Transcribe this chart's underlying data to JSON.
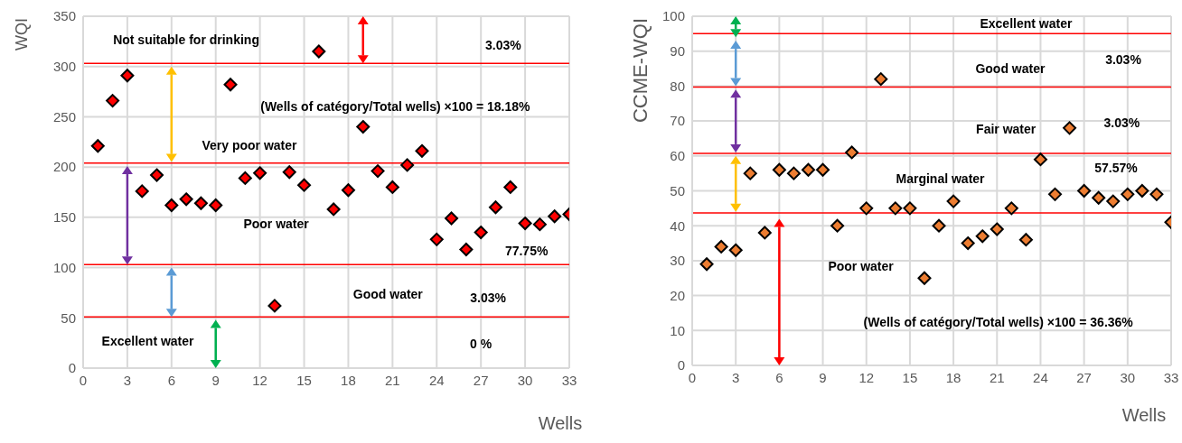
{
  "chart_data": [
    {
      "type": "scatter",
      "ylabel": "WQI",
      "xlabel": "Wells",
      "x": [
        1,
        2,
        3,
        4,
        5,
        6,
        7,
        8,
        9,
        10,
        11,
        12,
        13,
        14,
        15,
        16,
        17,
        18,
        19,
        20,
        21,
        22,
        23,
        24,
        25,
        26,
        27,
        28,
        29,
        30,
        31,
        32,
        33
      ],
      "series": [
        {
          "color": "#ff0000",
          "values": [
            221,
            266,
            291,
            176,
            192,
            162,
            168,
            164,
            162,
            282,
            189,
            194,
            62,
            195,
            182,
            315,
            158,
            177,
            240,
            196,
            180,
            202,
            216,
            128,
            149,
            118,
            135,
            160,
            180,
            144,
            143,
            151,
            153
          ]
        }
      ],
      "xlim": [
        0,
        33
      ],
      "xticks": [
        0,
        3,
        6,
        9,
        12,
        15,
        18,
        21,
        24,
        27,
        30,
        33
      ],
      "ylim": [
        0,
        350
      ],
      "yticks": [
        0,
        50,
        100,
        150,
        200,
        250,
        300,
        350
      ],
      "grid": true,
      "marker": "diamond",
      "ref_lines": [
        {
          "axis": "y",
          "value": 303,
          "color": "#ff0000"
        },
        {
          "axis": "y",
          "value": 204,
          "color": "#ff0000"
        },
        {
          "axis": "y",
          "value": 103,
          "color": "#ff0000"
        },
        {
          "axis": "y",
          "value": 51,
          "color": "#ff0000"
        }
      ],
      "annotations": [
        "Not suitable for drinking",
        "3.03%",
        "(Wells of catégory/Total wells) ×100 = 18.18%",
        "Very poor water",
        "Poor water",
        "77.75%",
        "Good water",
        "3.03%",
        "Excellent water",
        "0 %"
      ]
    },
    {
      "type": "scatter",
      "ylabel": "CCME-WQI",
      "xlabel": "Wells",
      "x": [
        1,
        2,
        3,
        4,
        5,
        6,
        7,
        8,
        9,
        10,
        11,
        12,
        13,
        14,
        15,
        16,
        17,
        18,
        19,
        20,
        21,
        22,
        23,
        24,
        25,
        26,
        27,
        28,
        29,
        30,
        31,
        32,
        33
      ],
      "series": [
        {
          "color": "#ed7d31",
          "values": [
            29,
            34,
            33,
            55,
            38,
            56,
            55,
            56,
            56,
            40,
            61,
            45,
            82,
            45,
            45,
            25,
            40,
            47,
            35,
            37,
            39,
            45,
            36,
            59,
            49,
            68,
            50,
            48,
            47,
            49,
            50,
            49,
            41
          ]
        }
      ],
      "xlim": [
        0,
        33
      ],
      "xticks": [
        0,
        3,
        6,
        9,
        12,
        15,
        18,
        21,
        24,
        27,
        30,
        33
      ],
      "ylim": [
        0,
        100
      ],
      "yticks": [
        0,
        10,
        20,
        30,
        40,
        50,
        60,
        70,
        80,
        90,
        100
      ],
      "grid": true,
      "marker": "diamond",
      "ref_lines": [
        {
          "axis": "y",
          "value": 95,
          "color": "#ff0000"
        },
        {
          "axis": "y",
          "value": 79.7,
          "color": "#ff0000"
        },
        {
          "axis": "y",
          "value": 60.7,
          "color": "#ff0000"
        },
        {
          "axis": "y",
          "value": 43.7,
          "color": "#ff0000"
        }
      ],
      "annotations": [
        "Excellent water",
        "Good water",
        "3.03%",
        "Fair water",
        "3.03%",
        "Marginal water",
        "57.57%",
        "Poor water",
        "(Wells of catégory/Total wells) ×100 = 36.36%"
      ]
    }
  ]
}
